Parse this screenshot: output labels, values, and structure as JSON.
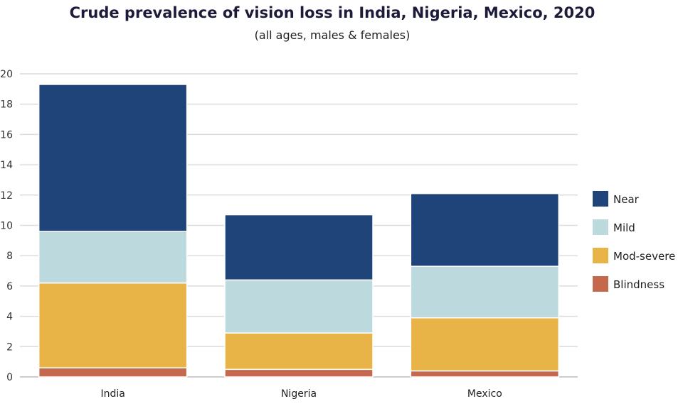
{
  "chart_data": {
    "type": "bar",
    "stacked": true,
    "title": "Crude prevalence of vision loss in India, Nigeria, Mexico, 2020",
    "subtitle": "(all ages, males & females)",
    "xlabel": "",
    "ylabel": "",
    "ylim": [
      0,
      20
    ],
    "yticks": [
      "0",
      "2",
      "4",
      "6",
      "8",
      "10",
      "12",
      "14",
      "16",
      "18",
      "20"
    ],
    "grid": true,
    "legend_position": "right",
    "categories": [
      "India",
      "Nigeria",
      "Mexico"
    ],
    "series": [
      {
        "name": "Blindness",
        "color": "#c4694d",
        "values": [
          0.6,
          0.5,
          0.4
        ]
      },
      {
        "name": "Mod-severe",
        "color": "#e8b447",
        "values": [
          5.6,
          2.4,
          3.5
        ]
      },
      {
        "name": "Mild",
        "color": "#bcd9dd",
        "values": [
          3.4,
          3.5,
          3.4
        ]
      },
      {
        "name": "Near",
        "color": "#1e4479",
        "values": [
          9.7,
          4.3,
          4.8
        ]
      }
    ],
    "legend_order": [
      "Near",
      "Mild",
      "Mod-severe",
      "Blindness"
    ]
  }
}
